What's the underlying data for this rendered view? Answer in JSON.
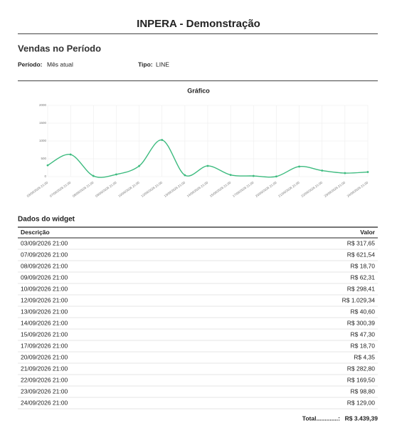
{
  "header": {
    "title": "INPERA - Demonstração"
  },
  "section": {
    "title": "Vendas no Período",
    "period_label": "Período:",
    "period_value": "Mês atual",
    "type_label": "Tipo:",
    "type_value": "LINE"
  },
  "chart_data": {
    "type": "line",
    "title": "Gráfico",
    "categories": [
      "03/09/2026 21:00",
      "07/09/2026 21:00",
      "08/09/2026 21:00",
      "09/09/2026 21:00",
      "10/09/2026 21:00",
      "12/09/2026 21:00",
      "13/09/2026 21:00",
      "14/09/2026 21:00",
      "15/09/2026 21:00",
      "17/09/2026 21:00",
      "20/09/2026 21:00",
      "21/09/2026 21:00",
      "22/09/2026 21:00",
      "23/09/2026 21:00",
      "24/09/2026 21:00"
    ],
    "values": [
      317.65,
      621.54,
      18.7,
      62.31,
      298.41,
      1029.34,
      40.6,
      300.39,
      47.3,
      18.7,
      4.35,
      282.8,
      169.5,
      98.8,
      129.0
    ],
    "color": "#3dbb7f",
    "ylim": [
      0,
      2000
    ],
    "yticks": [
      0,
      500,
      1000,
      1500,
      2000
    ],
    "grid": true
  },
  "table": {
    "title": "Dados do widget",
    "columns": [
      "Descrição",
      "Valor"
    ],
    "rows": [
      [
        "03/09/2026 21:00",
        "R$ 317,65"
      ],
      [
        "07/09/2026 21:00",
        "R$ 621,54"
      ],
      [
        "08/09/2026 21:00",
        "R$ 18,70"
      ],
      [
        "09/09/2026 21:00",
        "R$ 62,31"
      ],
      [
        "10/09/2026 21:00",
        "R$ 298,41"
      ],
      [
        "12/09/2026 21:00",
        "R$ 1.029,34"
      ],
      [
        "13/09/2026 21:00",
        "R$ 40,60"
      ],
      [
        "14/09/2026 21:00",
        "R$ 300,39"
      ],
      [
        "15/09/2026 21:00",
        "R$ 47,30"
      ],
      [
        "17/09/2026 21:00",
        "R$ 18,70"
      ],
      [
        "20/09/2026 21:00",
        "R$ 4,35"
      ],
      [
        "21/09/2026 21:00",
        "R$ 282,80"
      ],
      [
        "22/09/2026 21:00",
        "R$ 169,50"
      ],
      [
        "23/09/2026 21:00",
        "R$ 98,80"
      ],
      [
        "24/09/2026 21:00",
        "R$ 129,00"
      ]
    ],
    "total_label": "Total.............:",
    "total_value": "R$ 3.439,39"
  }
}
